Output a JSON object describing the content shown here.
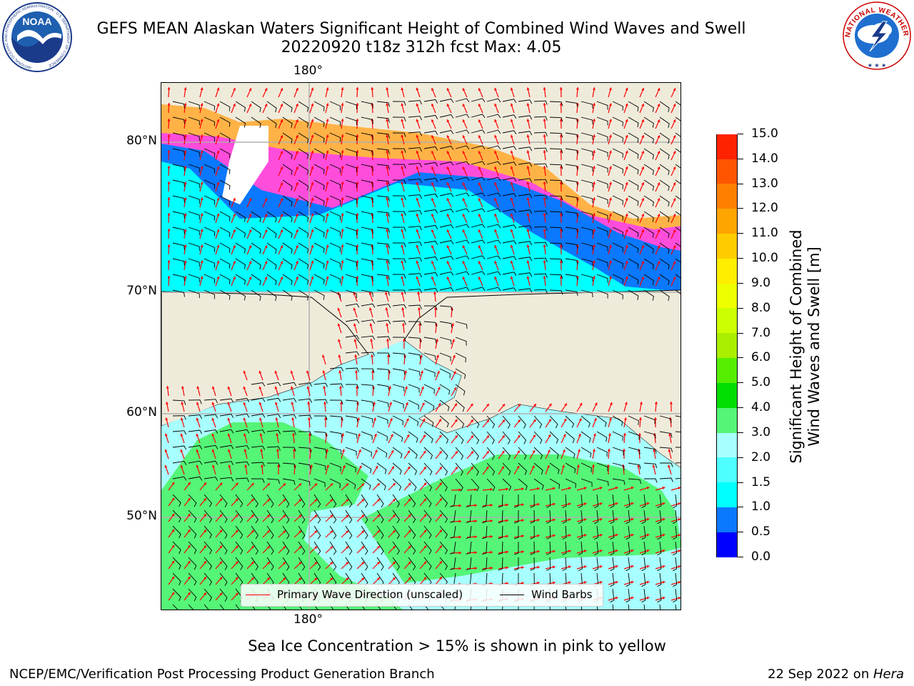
{
  "header": {
    "title_line1": "GEFS MEAN Alaskan Waters Significant Height of Combined Wind Waves and Swell",
    "title_line2": "20220920 t18z 312h fcst   Max: 4.05"
  },
  "logos": {
    "noaa_text": "NOAA",
    "noaa_ring_text": "NATIONAL OCEANIC AND ATMOSPHERIC ADMINISTRATION · U.S. DEPARTMENT OF COMMERCE",
    "nws_ring_text": "NATIONAL WEATHER SERVICE"
  },
  "map": {
    "lon_label_top": "180°",
    "lon_label_bottom": "180°",
    "lat_labels": [
      "80°N",
      "70°N",
      "60°N",
      "50°N"
    ],
    "land_color": "#efebdb",
    "graticule_color": "#b0b0b0"
  },
  "colorbar": {
    "title_line1": "Significant Height of Combined",
    "title_line2": "Wind Waves and Swell [m]",
    "levels": [
      "0.0",
      "0.5",
      "1.0",
      "1.5",
      "2.0",
      "3.0",
      "4.0",
      "5.0",
      "6.0",
      "7.0",
      "8.0",
      "9.0",
      "10.0",
      "11.0",
      "12.0",
      "13.0",
      "14.0",
      "15.0"
    ],
    "colors": [
      "#0000ff",
      "#0a78ff",
      "#00ffff",
      "#4dffff",
      "#a8ffff",
      "#55f577",
      "#00dd00",
      "#55ee00",
      "#aaee00",
      "#ccff00",
      "#eeff00",
      "#ffee00",
      "#ffcc00",
      "#ffa500",
      "#ff8000",
      "#ff5500",
      "#ff2200"
    ]
  },
  "legend": {
    "wave_direction_label": "Primary Wave Direction (unscaled)",
    "wave_direction_color": "#ff0000",
    "wind_barbs_label": "Wind Barbs",
    "wind_barbs_color": "#000000"
  },
  "footer": {
    "sea_ice_note": "Sea Ice Concentration > 15% is shown in pink to yellow",
    "credit": "NCEP/EMC/Verification Post Processing Product Generation Branch",
    "date_prefix": "22 Sep 2022 on ",
    "machine": "Hera"
  }
}
